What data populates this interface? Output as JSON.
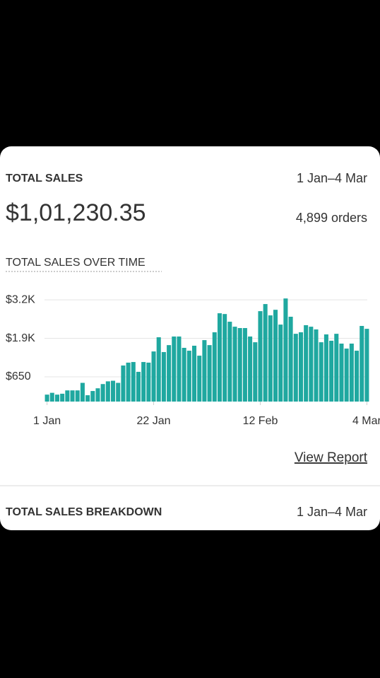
{
  "header": {
    "title": "TOTAL SALES",
    "date_range": "1 Jan–4 Mar",
    "total": "$1,01,230.35",
    "orders": "4,899 orders"
  },
  "chart_data": {
    "type": "bar",
    "title": "TOTAL SALES OVER TIME",
    "categories": [
      "1 Jan",
      null,
      null,
      null,
      null,
      null,
      null,
      null,
      null,
      null,
      null,
      null,
      null,
      null,
      null,
      null,
      null,
      null,
      null,
      null,
      null,
      "22 Jan",
      null,
      null,
      null,
      null,
      null,
      null,
      null,
      null,
      null,
      null,
      null,
      null,
      null,
      null,
      null,
      null,
      null,
      null,
      null,
      null,
      "12 Feb",
      null,
      null,
      null,
      null,
      null,
      null,
      null,
      null,
      null,
      null,
      null,
      null,
      null,
      null,
      null,
      null,
      null,
      null,
      null,
      null,
      "4 Mar"
    ],
    "values": [
      60,
      120,
      60,
      90,
      200,
      200,
      200,
      450,
      40,
      180,
      270,
      410,
      500,
      520,
      450,
      1025,
      1120,
      1140,
      815,
      1140,
      1120,
      1490,
      1960,
      1470,
      1700,
      1985,
      1985,
      1610,
      1515,
      1680,
      1350,
      1865,
      1700,
      2125,
      2755,
      2730,
      2475,
      2310,
      2265,
      2265,
      1985,
      1795,
      2825,
      3060,
      2685,
      2870,
      2380,
      3245,
      2640,
      2075,
      2125,
      2360,
      2310,
      2220,
      1795,
      2055,
      1845,
      2075,
      1750,
      1585,
      1750,
      1515,
      2335,
      2240
    ],
    "color": "#1fa8a0",
    "ylim": [
      -170,
      3530
    ],
    "yticks": [
      {
        "value": 3200,
        "label": "$3.2K"
      },
      {
        "value": 1925,
        "label": "$1.9K"
      },
      {
        "value": 650,
        "label": "$650"
      }
    ],
    "grid": true
  },
  "link": "View Report",
  "breakdown": {
    "title": "TOTAL SALES BREAKDOWN",
    "date_range": "1 Jan–4 Mar"
  }
}
